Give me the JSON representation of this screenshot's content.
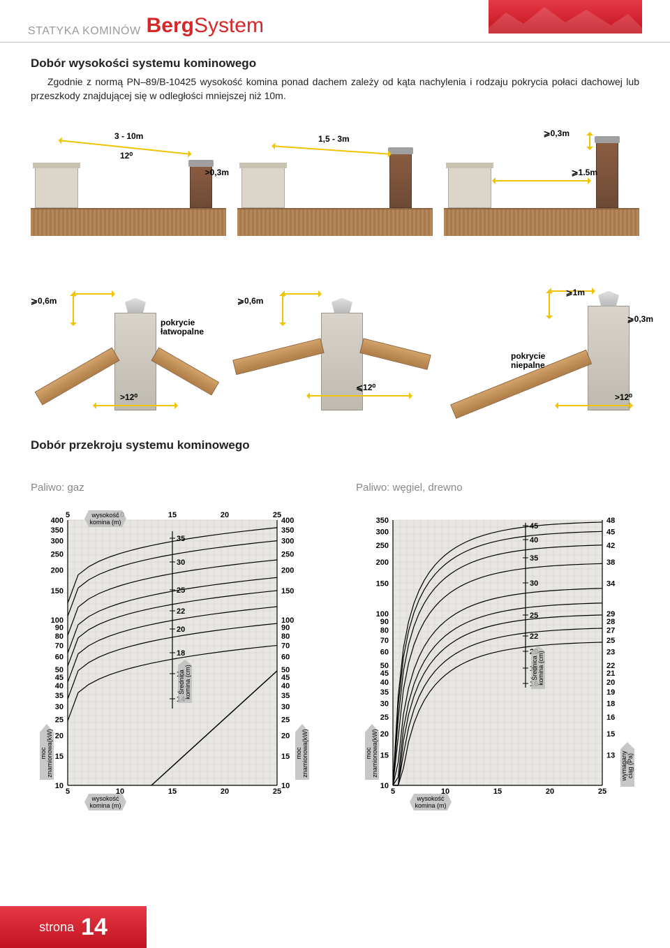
{
  "header": {
    "label": "STATYKA KOMINÓW",
    "brand_bold": "Berg",
    "brand_light": "System"
  },
  "section1": {
    "title": "Dobór wysokości systemu kominowego",
    "body": "Zgodnie z normą PN–89/B-10425 wysokość komina ponad dachem zależy od kąta nachylenia i rodzaju pokrycia połaci dachowej lub przeszkody znajdującej się w odległości mniejszej niż 10m."
  },
  "diagrams_row1": [
    {
      "top_dim": "3 - 10m",
      "angle": "12⁰",
      "side_dim": ">0,3m"
    },
    {
      "top_dim": "1,5 - 3m"
    },
    {
      "top_dim": "⩾0,3m",
      "side_dim": "⩾1.5m"
    }
  ],
  "diagrams_row2": [
    {
      "height": "⩾0,6m",
      "cover": "pokrycie\nłatwopalne",
      "angle": ">12⁰"
    },
    {
      "height": "⩾0,6m",
      "angle": "⩽12⁰"
    },
    {
      "height": "⩾1m",
      "side": "⩾0,3m",
      "cover": "pokrycie\nniepalne",
      "angle": ">12⁰"
    }
  ],
  "section2": {
    "title": "Dobór przekroju systemu kominowego"
  },
  "charts": {
    "left": {
      "title": "Paliwo: gaz",
      "x_label": "wysokość\nkomina (m)",
      "y_label": "moc\nznamionowa(kW)",
      "diam_label": "Średnica\nkomina (cm)",
      "x_ticks": [
        5,
        10,
        15,
        20,
        25
      ],
      "y_ticks_left": [
        400,
        350,
        300,
        250,
        200,
        150,
        100,
        90,
        80,
        70,
        60,
        50,
        45,
        40,
        35,
        30,
        25,
        20,
        15,
        10
      ],
      "y_ticks_right": [
        400,
        350,
        300,
        250,
        200,
        150,
        100,
        90,
        80,
        70,
        60,
        50,
        45,
        40,
        35,
        30,
        25,
        20,
        15,
        10
      ],
      "diam_ticks": [
        35,
        30,
        25,
        22,
        20,
        18,
        16,
        14
      ]
    },
    "right": {
      "title": "Paliwo: węgiel, drewno",
      "x_label": "wysokość\nkomina (m)",
      "y_label_left": "moc\nznamionowa(kW)",
      "y_label_right": "wymagany\nciąg (Pa)",
      "diam_label": "Średnica\nkomina (cm)",
      "x_ticks": [
        5,
        10,
        15,
        20,
        25
      ],
      "y_ticks_left": [
        350,
        300,
        250,
        200,
        150,
        100,
        90,
        80,
        70,
        60,
        50,
        45,
        40,
        35,
        30,
        25,
        20,
        15,
        10
      ],
      "y_ticks_right": [
        48,
        45,
        42,
        38,
        34,
        29,
        28,
        27,
        25,
        23,
        22,
        21,
        20,
        19,
        18,
        16,
        15,
        13
      ],
      "diam_ticks": [
        45,
        40,
        35,
        30,
        25,
        22,
        20,
        18,
        16
      ]
    },
    "colors": {
      "bg": "#e8e6e2",
      "grid": "#cfccc6",
      "line": "#000000"
    }
  },
  "footer": {
    "label": "strona",
    "num": "14"
  }
}
